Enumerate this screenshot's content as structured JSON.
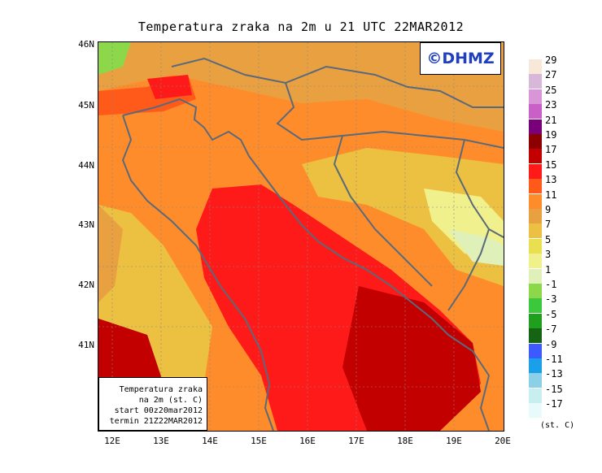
{
  "title": "Temperatura zraka na 2m u 21 UTC 22MAR2012",
  "logo": "©DHMZ",
  "info_box": {
    "line1": "Temperatura zraka",
    "line2": "na 2m (st. C)",
    "line3": "start 00z20mar2012",
    "line4": "termin 21Z22MAR2012"
  },
  "axes": {
    "x_labels": [
      "12E",
      "13E",
      "14E",
      "15E",
      "16E",
      "17E",
      "18E",
      "19E",
      "20E"
    ],
    "y_labels": [
      "46N",
      "45N",
      "44N",
      "43N",
      "42N",
      "41N"
    ]
  },
  "legend": {
    "unit": "(st. C)",
    "labels": [
      "29",
      "27",
      "25",
      "23",
      "21",
      "19",
      "17",
      "15",
      "13",
      "11",
      "9",
      "7",
      "5",
      "3",
      "1",
      "-1",
      "-3",
      "-5",
      "-7",
      "-9",
      "-11",
      "-13",
      "-15",
      "-17"
    ],
    "colors": [
      "#f7e8d8",
      "#d8b8d8",
      "#d896d8",
      "#c860c8",
      "#7a007a",
      "#8c0000",
      "#c20000",
      "#ff1a1a",
      "#ff5a1a",
      "#ff8c2a",
      "#e8a040",
      "#ecc040",
      "#e8e050",
      "#f0f08c",
      "#dff0b8",
      "#8cd84a",
      "#3cc83c",
      "#1ea01e",
      "#146414",
      "#3c5aff",
      "#19a0e8",
      "#8cd0e8",
      "#c8eef0",
      "#e8fafa"
    ]
  }
}
